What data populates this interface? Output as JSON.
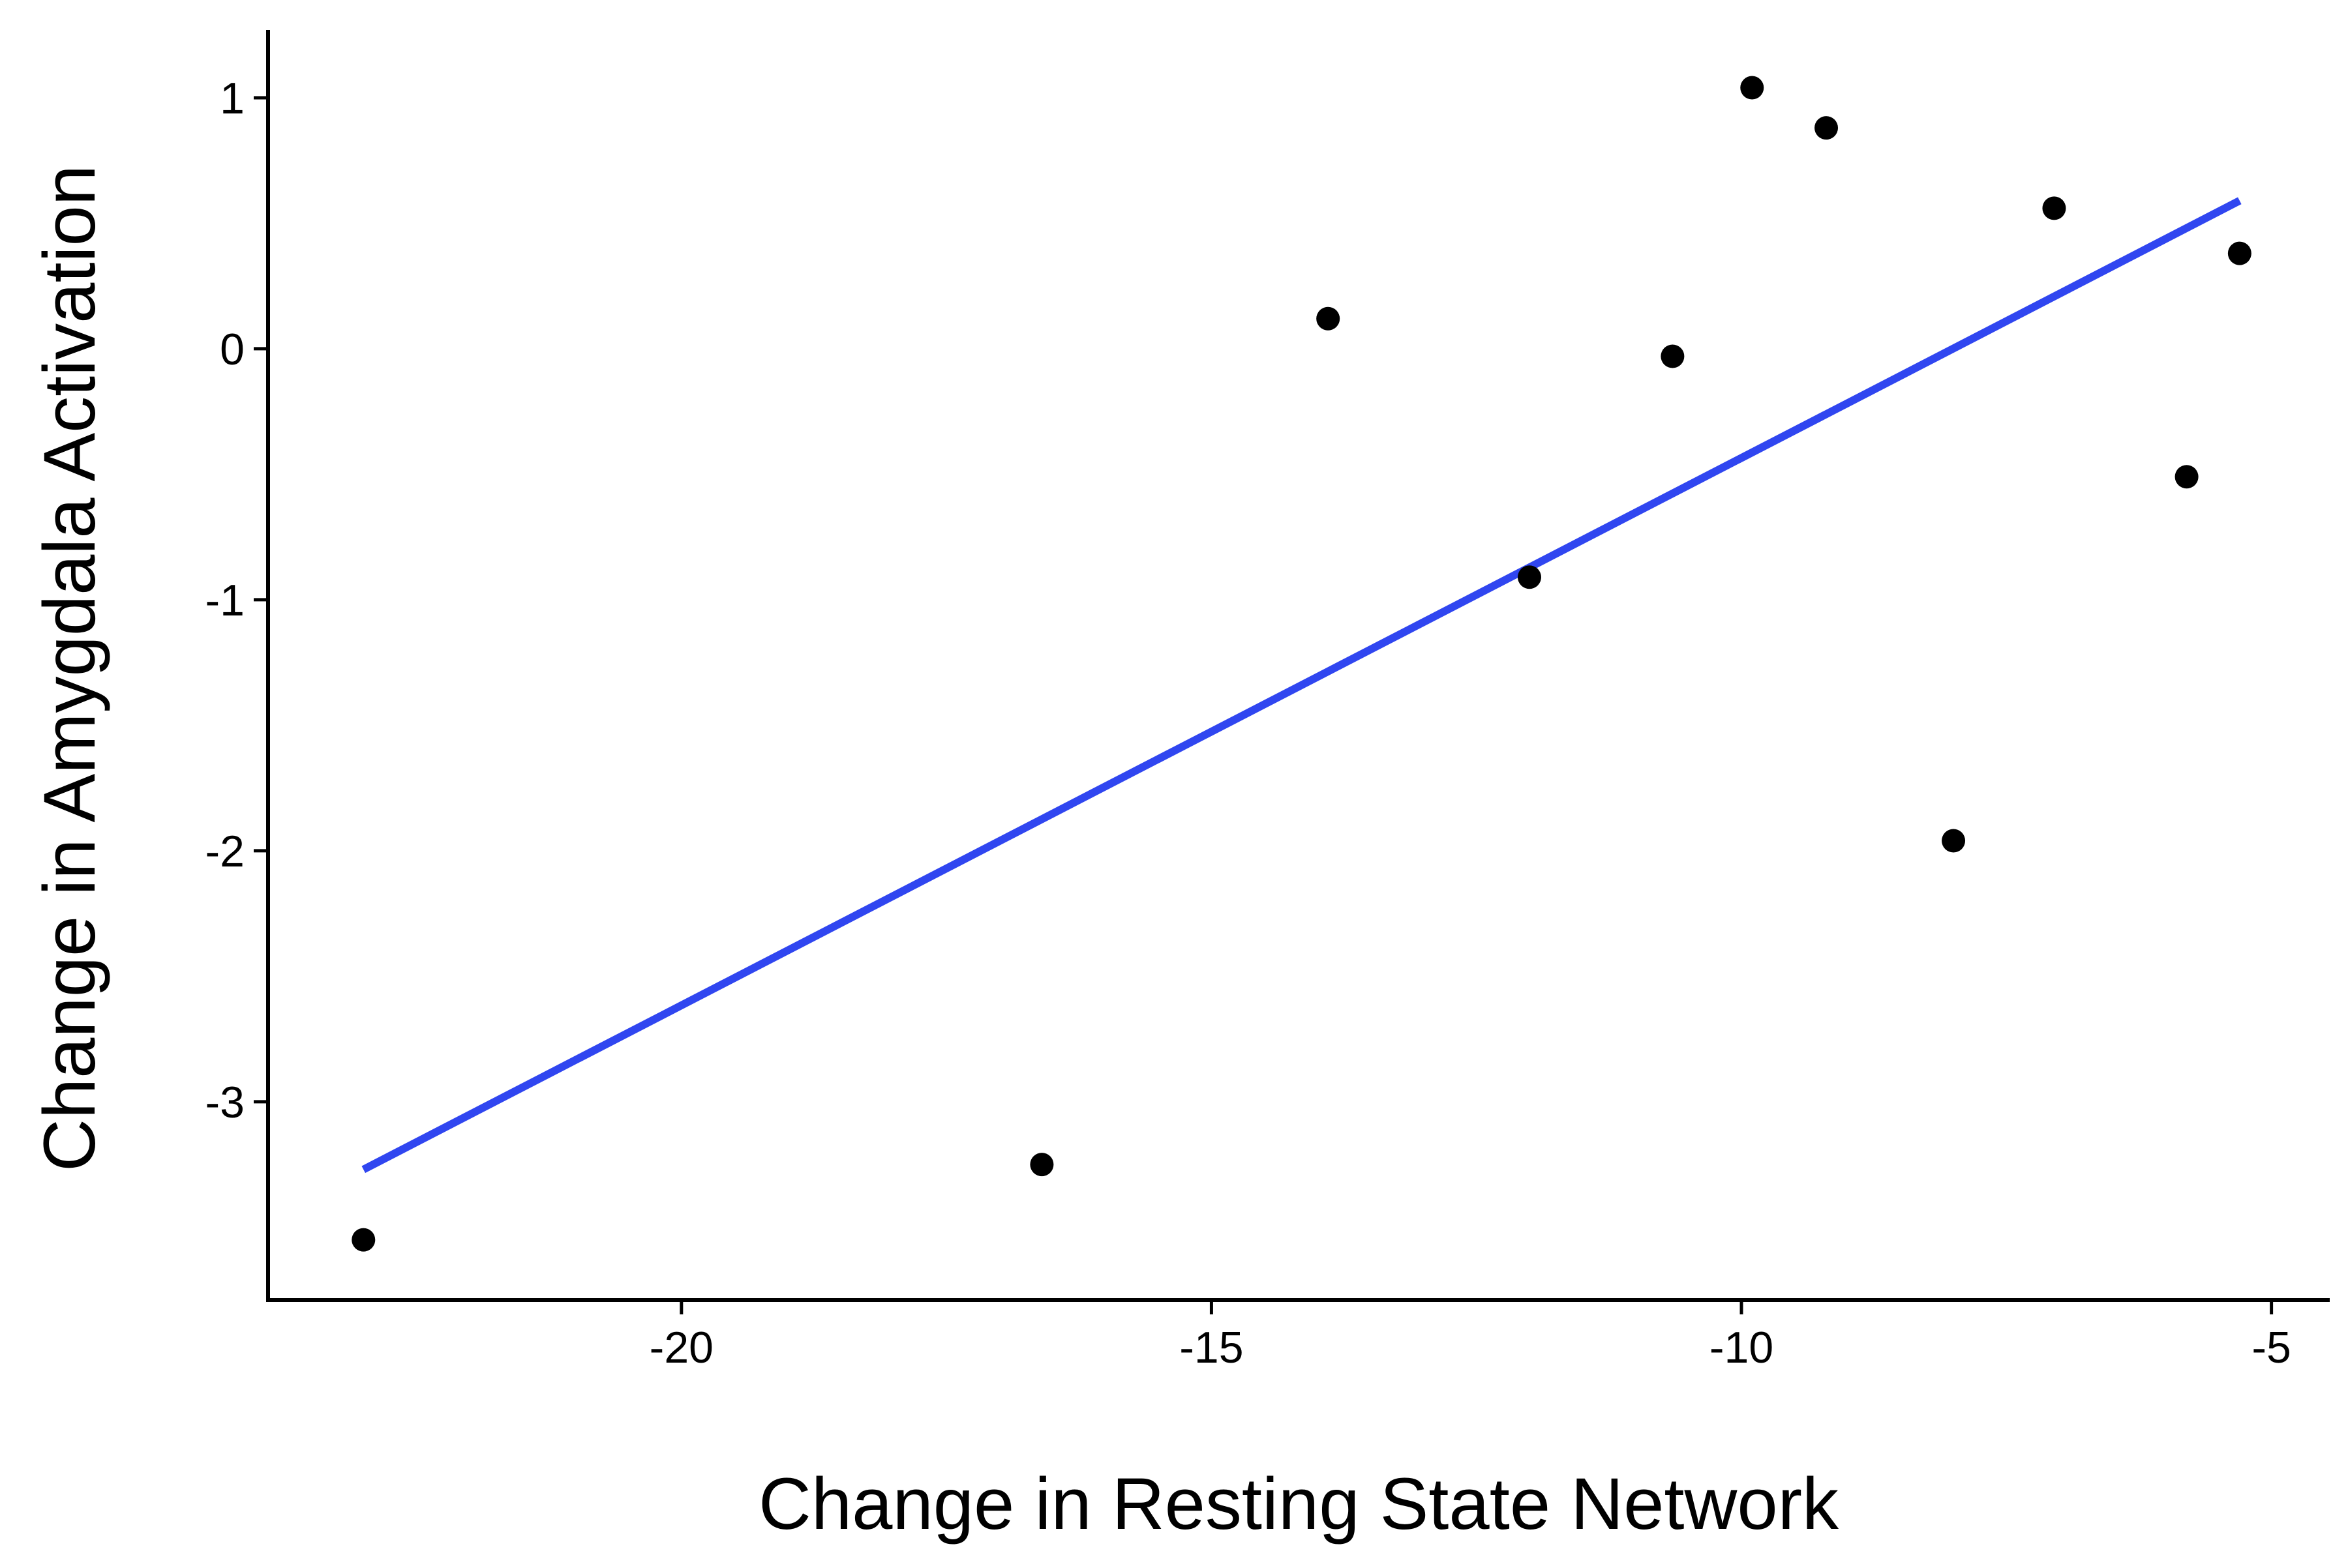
{
  "chart_data": {
    "type": "scatter",
    "title": "",
    "xlabel": "Change in Resting State Network",
    "ylabel": "Change in Amygdala Activation",
    "xlim": [
      -23.9,
      -4.45
    ],
    "ylim": [
      -3.79,
      1.27
    ],
    "x_ticks": [
      -20,
      -15,
      -10,
      -5
    ],
    "y_ticks": [
      -3,
      -2,
      -1,
      0,
      1
    ],
    "x_tick_labels": [
      "-20",
      "-15",
      "-10",
      "-5"
    ],
    "y_tick_labels": [
      "-3",
      "-2",
      "-1",
      "0",
      "1"
    ],
    "grid": false,
    "legend": "none",
    "points": [
      {
        "x": -23.0,
        "y": -3.55
      },
      {
        "x": -16.6,
        "y": -3.25
      },
      {
        "x": -13.9,
        "y": 0.12
      },
      {
        "x": -12.0,
        "y": -0.91
      },
      {
        "x": -10.65,
        "y": -0.03
      },
      {
        "x": -9.9,
        "y": 1.04
      },
      {
        "x": -9.2,
        "y": 0.88
      },
      {
        "x": -8.0,
        "y": -1.96
      },
      {
        "x": -7.05,
        "y": 0.56
      },
      {
        "x": -5.8,
        "y": -0.51
      },
      {
        "x": -5.3,
        "y": 0.38
      }
    ],
    "trend_line": {
      "type": "linear",
      "x": [
        -23.0,
        -5.3
      ],
      "y": [
        -3.27,
        0.59
      ]
    },
    "colors": {
      "points": "#000000",
      "trend_line": "#3046F0",
      "axes": "#000000"
    }
  }
}
